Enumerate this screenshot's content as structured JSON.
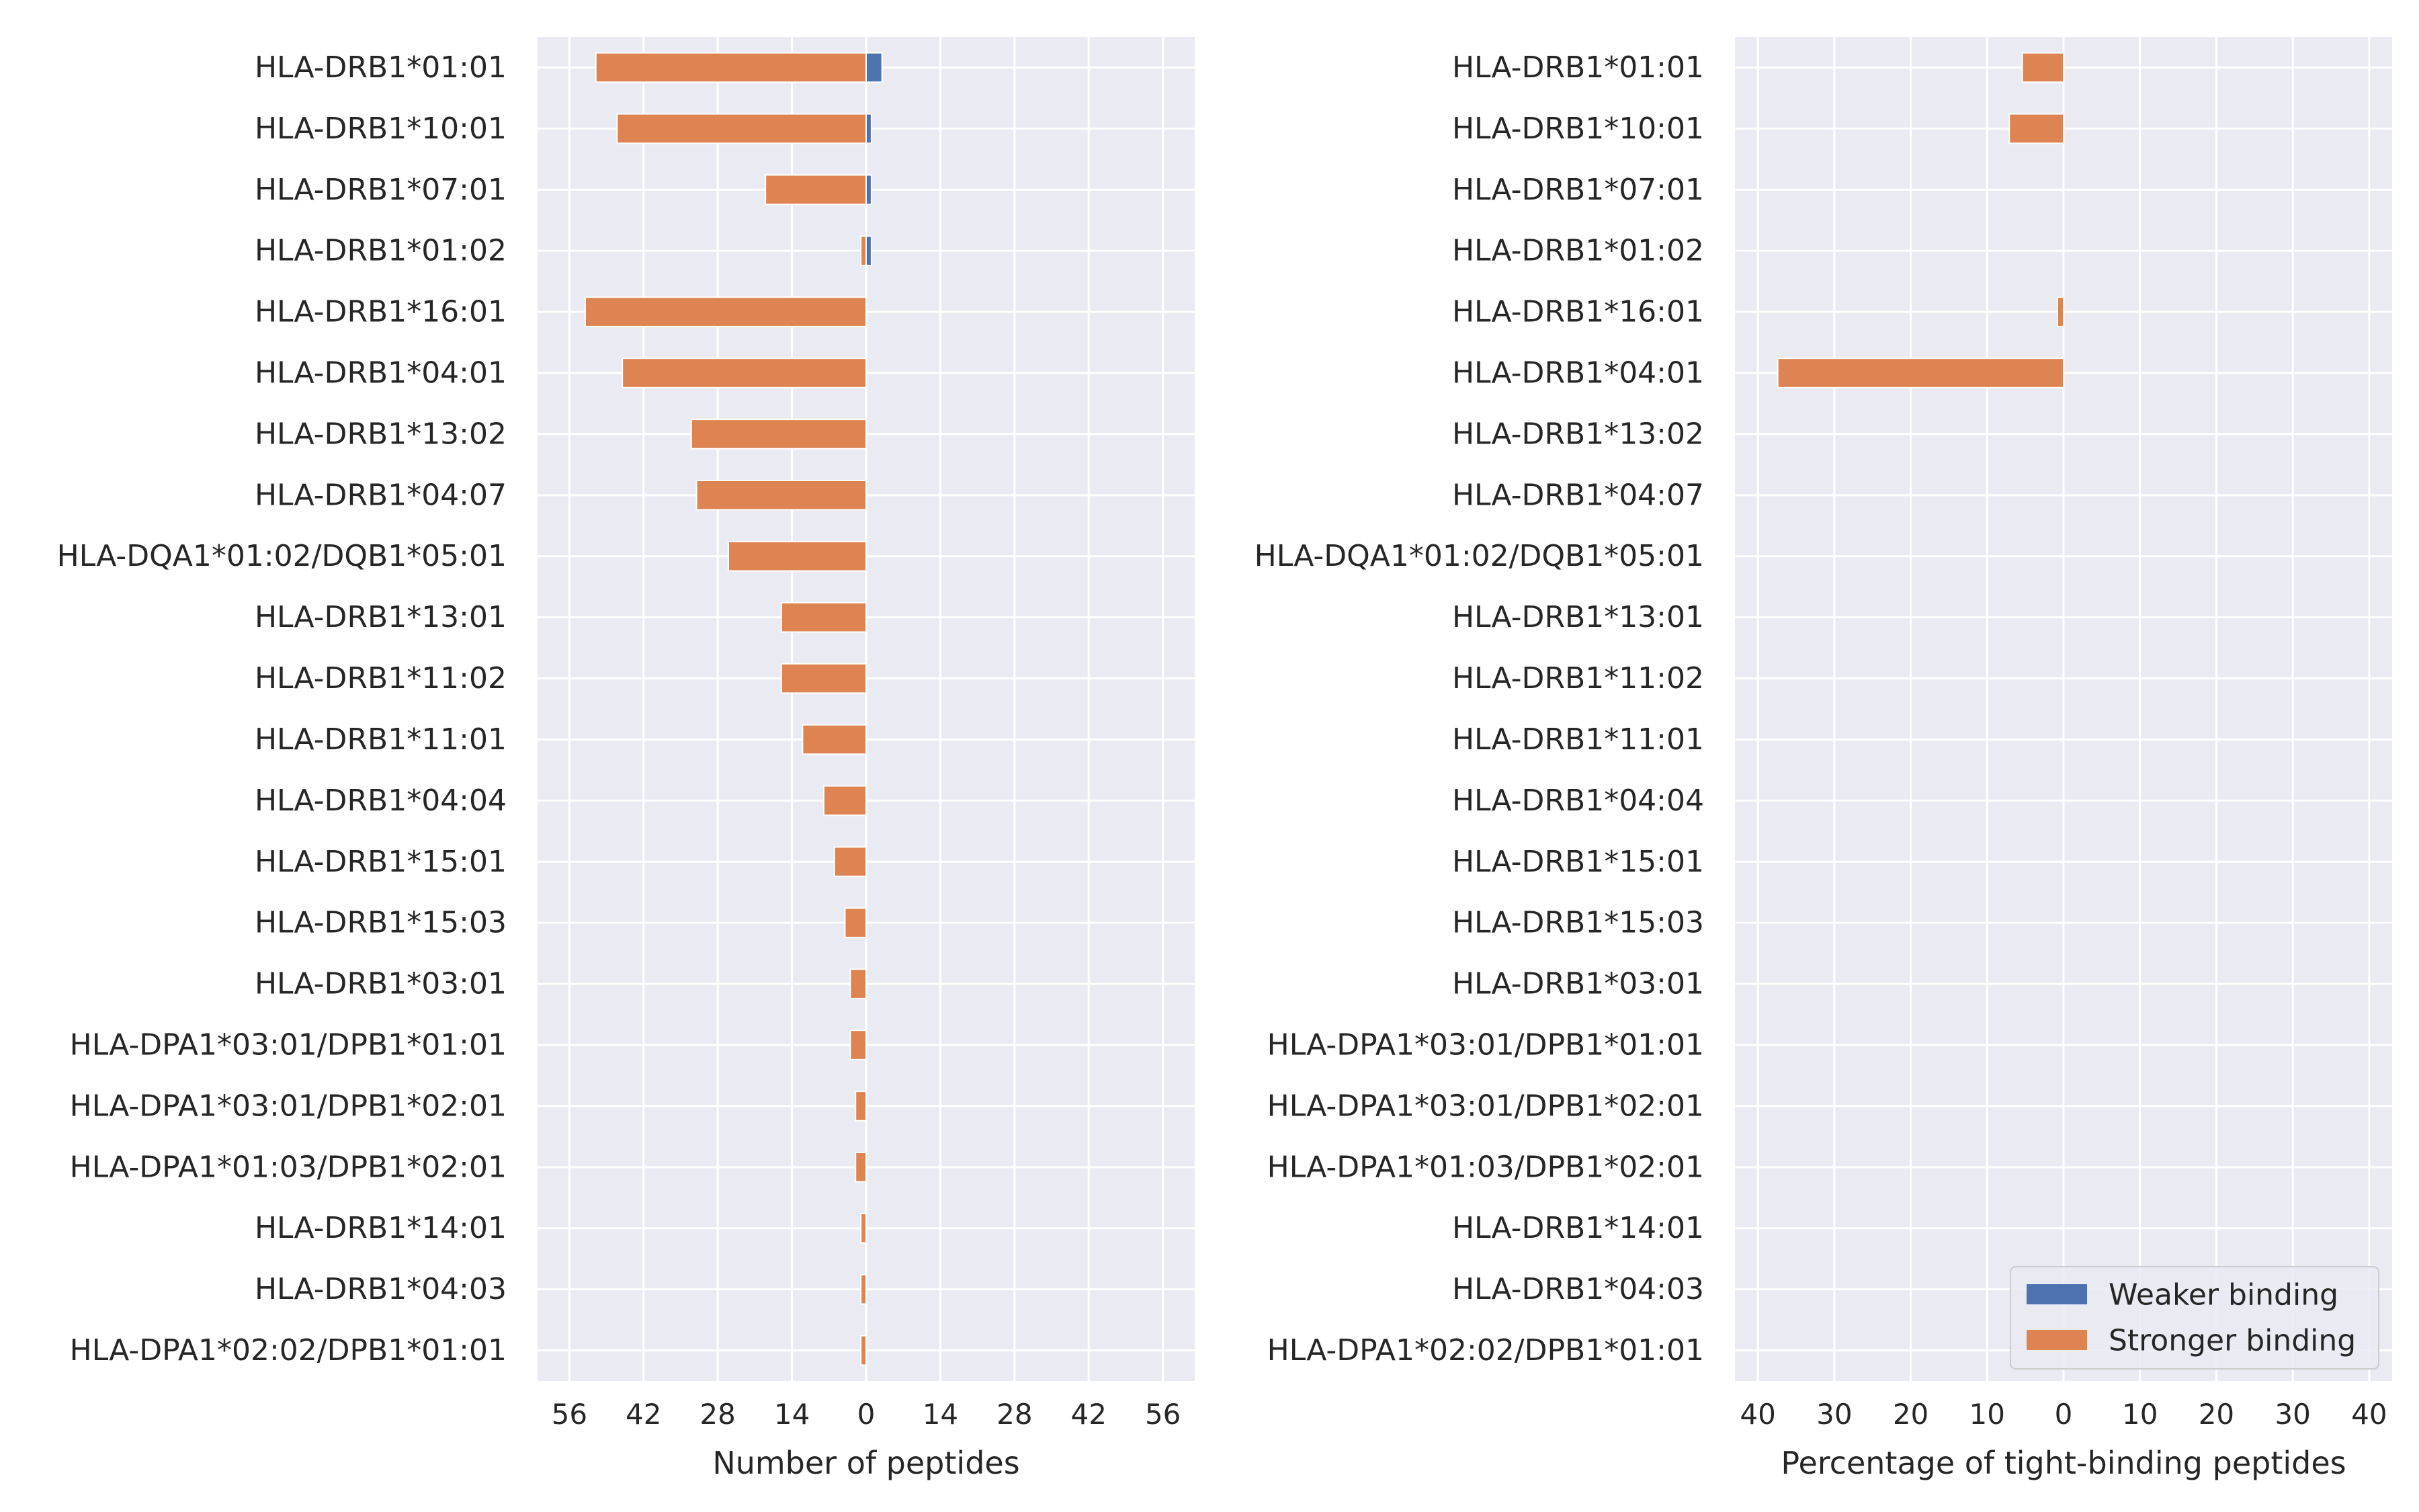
{
  "colors": {
    "panel_bg": "#eaeaf2",
    "grid": "#ffffff",
    "weaker": "#4c72b0",
    "stronger": "#dd8452",
    "text": "#262626"
  },
  "legend": {
    "placement": "lower-right",
    "items": [
      {
        "label": "Weaker binding",
        "color": "#4c72b0"
      },
      {
        "label": "Stronger binding",
        "color": "#dd8452"
      }
    ]
  },
  "chart_data": [
    {
      "type": "bar",
      "orientation": "horizontal",
      "xlabel": "Number of peptides",
      "xlim": [
        -62,
        62
      ],
      "xticks": [
        -56,
        -42,
        -28,
        -14,
        0,
        14,
        28,
        42,
        56
      ],
      "xtick_labels": [
        "56",
        "42",
        "28",
        "14",
        "0",
        "14",
        "28",
        "42",
        "56"
      ],
      "grid": true,
      "categories": [
        "HLA-DRB1*01:01",
        "HLA-DRB1*10:01",
        "HLA-DRB1*07:01",
        "HLA-DRB1*01:02",
        "HLA-DRB1*16:01",
        "HLA-DRB1*04:01",
        "HLA-DRB1*13:02",
        "HLA-DRB1*04:07",
        "HLA-DQA1*01:02/DQB1*05:01",
        "HLA-DRB1*13:01",
        "HLA-DRB1*11:02",
        "HLA-DRB1*11:01",
        "HLA-DRB1*04:04",
        "HLA-DRB1*15:01",
        "HLA-DRB1*15:03",
        "HLA-DRB1*03:01",
        "HLA-DPA1*03:01/DPB1*01:01",
        "HLA-DPA1*03:01/DPB1*02:01",
        "HLA-DPA1*01:03/DPB1*02:01",
        "HLA-DRB1*14:01",
        "HLA-DRB1*04:03",
        "HLA-DPA1*02:02/DPB1*01:01"
      ],
      "series": [
        {
          "name": "Weaker binding",
          "values": [
            3,
            1,
            1,
            1,
            0,
            0,
            0,
            0,
            0,
            0,
            0,
            0,
            0,
            0,
            0,
            0,
            0,
            0,
            0,
            0,
            0,
            0
          ]
        },
        {
          "name": "Stronger binding",
          "values": [
            -51,
            -47,
            -19,
            -1,
            -53,
            -46,
            -33,
            -32,
            -26,
            -16,
            -16,
            -12,
            -8,
            -6,
            -4,
            -3,
            -3,
            -2,
            -2,
            -1,
            -1,
            -1
          ]
        }
      ]
    },
    {
      "type": "bar",
      "orientation": "horizontal",
      "xlabel": "Percentage of tight-binding peptides",
      "xlim": [
        -43,
        43
      ],
      "xticks": [
        -40,
        -30,
        -20,
        -10,
        0,
        10,
        20,
        30,
        40
      ],
      "xtick_labels": [
        "40",
        "30",
        "20",
        "10",
        "0",
        "10",
        "20",
        "30",
        "40"
      ],
      "grid": true,
      "categories": [
        "HLA-DRB1*01:01",
        "HLA-DRB1*10:01",
        "HLA-DRB1*07:01",
        "HLA-DRB1*01:02",
        "HLA-DRB1*16:01",
        "HLA-DRB1*04:01",
        "HLA-DRB1*13:02",
        "HLA-DRB1*04:07",
        "HLA-DQA1*01:02/DQB1*05:01",
        "HLA-DRB1*13:01",
        "HLA-DRB1*11:02",
        "HLA-DRB1*11:01",
        "HLA-DRB1*04:04",
        "HLA-DRB1*15:01",
        "HLA-DRB1*15:03",
        "HLA-DRB1*03:01",
        "HLA-DPA1*03:01/DPB1*01:01",
        "HLA-DPA1*03:01/DPB1*02:01",
        "HLA-DPA1*01:03/DPB1*02:01",
        "HLA-DRB1*14:01",
        "HLA-DRB1*04:03",
        "HLA-DPA1*02:02/DPB1*01:01"
      ],
      "series": [
        {
          "name": "Weaker binding",
          "values": [
            0,
            0,
            0,
            0,
            0,
            0,
            0,
            0,
            0,
            0,
            0,
            0,
            0,
            0,
            0,
            0,
            0,
            0,
            0,
            0,
            0,
            0
          ]
        },
        {
          "name": "Stronger binding",
          "values": [
            -5.4,
            -7.1,
            0,
            0,
            -0.8,
            -37.4,
            0,
            0,
            0,
            0,
            0,
            0,
            0,
            0,
            0,
            0,
            0,
            0,
            0,
            0,
            0,
            0
          ]
        }
      ]
    }
  ]
}
